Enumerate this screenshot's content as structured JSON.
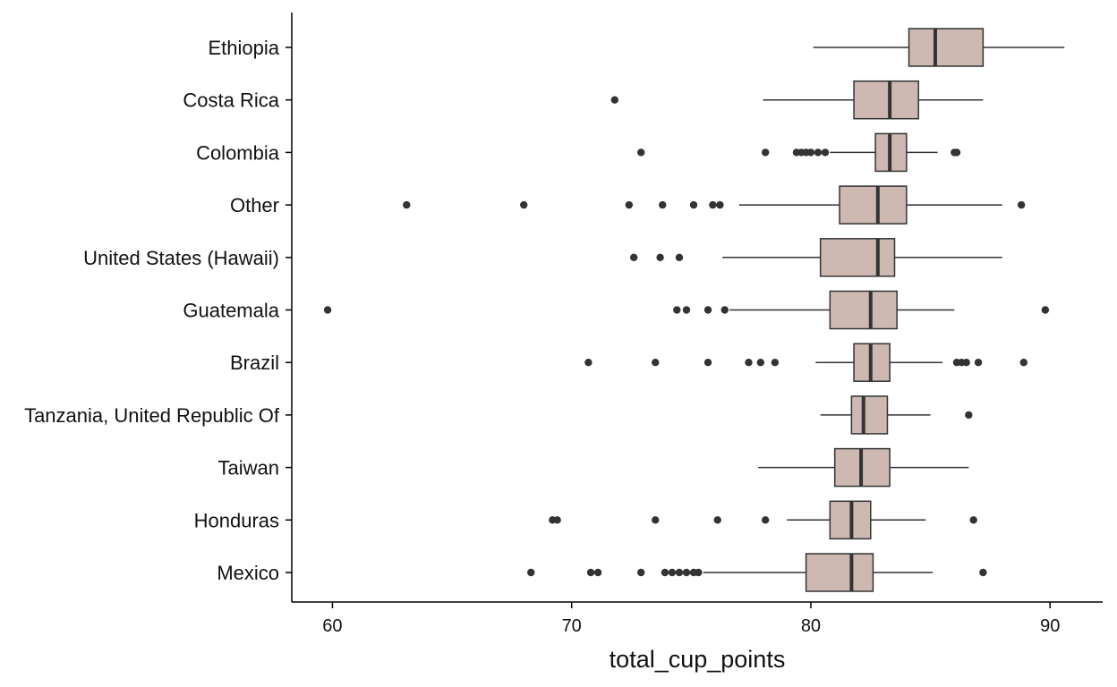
{
  "chart_data": {
    "type": "boxplot",
    "orientation": "horizontal",
    "title": "",
    "xlabel": "total_cup_points",
    "ylabel": "",
    "xlim": [
      58.3,
      92.2
    ],
    "xticks": [
      60,
      70,
      80,
      90
    ],
    "grid": false,
    "legend": "none",
    "box_fill": "#cdb9b2",
    "line_color": "#333333",
    "categories": [
      {
        "name": "Ethiopia",
        "q1": 84.1,
        "median": 85.2,
        "q3": 87.2,
        "whisker_low": 80.1,
        "whisker_high": 90.6,
        "outliers": []
      },
      {
        "name": "Costa Rica",
        "q1": 81.8,
        "median": 83.3,
        "q3": 84.5,
        "whisker_low": 78.0,
        "whisker_high": 87.2,
        "outliers": [
          71.8
        ]
      },
      {
        "name": "Colombia",
        "q1": 82.7,
        "median": 83.3,
        "q3": 84.0,
        "whisker_low": 80.8,
        "whisker_high": 85.3,
        "outliers": [
          72.9,
          78.1,
          79.4,
          79.6,
          79.8,
          80.0,
          80.3,
          80.6,
          86.0,
          86.1
        ]
      },
      {
        "name": "Other",
        "q1": 81.2,
        "median": 82.8,
        "q3": 84.0,
        "whisker_low": 77.0,
        "whisker_high": 88.0,
        "outliers": [
          63.1,
          68.0,
          72.4,
          73.8,
          75.1,
          75.9,
          76.2,
          88.8
        ]
      },
      {
        "name": "United States (Hawaii)",
        "q1": 80.4,
        "median": 82.8,
        "q3": 83.5,
        "whisker_low": 76.3,
        "whisker_high": 88.0,
        "outliers": [
          72.6,
          73.7,
          74.5
        ]
      },
      {
        "name": "Guatemala",
        "q1": 80.8,
        "median": 82.5,
        "q3": 83.6,
        "whisker_low": 76.6,
        "whisker_high": 86.0,
        "outliers": [
          59.8,
          74.4,
          74.8,
          75.7,
          76.4,
          89.8
        ]
      },
      {
        "name": "Brazil",
        "q1": 81.8,
        "median": 82.5,
        "q3": 83.3,
        "whisker_low": 80.2,
        "whisker_high": 85.5,
        "outliers": [
          70.7,
          73.5,
          75.7,
          77.4,
          77.9,
          78.5,
          86.1,
          86.3,
          86.5,
          87.0,
          88.9
        ]
      },
      {
        "name": "Tanzania, United Republic Of",
        "q1": 81.7,
        "median": 82.2,
        "q3": 83.2,
        "whisker_low": 80.4,
        "whisker_high": 85.0,
        "outliers": [
          86.6
        ]
      },
      {
        "name": "Taiwan",
        "q1": 81.0,
        "median": 82.1,
        "q3": 83.3,
        "whisker_low": 77.8,
        "whisker_high": 86.6,
        "outliers": []
      },
      {
        "name": "Honduras",
        "q1": 80.8,
        "median": 81.7,
        "q3": 82.5,
        "whisker_low": 79.0,
        "whisker_high": 84.8,
        "outliers": [
          69.2,
          69.4,
          73.5,
          76.1,
          78.1,
          86.8
        ]
      },
      {
        "name": "Mexico",
        "q1": 79.8,
        "median": 81.7,
        "q3": 82.6,
        "whisker_low": 75.5,
        "whisker_high": 85.1,
        "outliers": [
          68.3,
          70.8,
          71.1,
          72.9,
          73.9,
          74.2,
          74.5,
          74.8,
          75.1,
          75.3,
          87.2
        ]
      }
    ]
  }
}
